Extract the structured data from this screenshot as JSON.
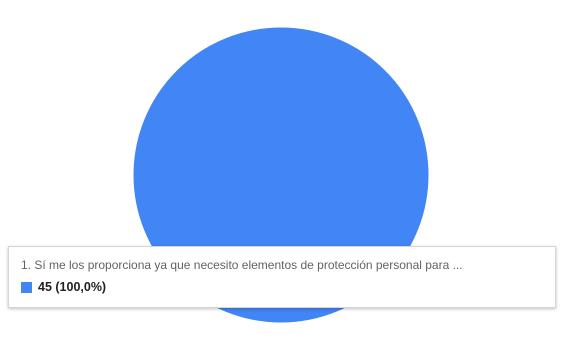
{
  "chart_data": {
    "type": "pie",
    "categories": [
      "1. Sí me los proporciona ya que necesito elementos de protección personal para ..."
    ],
    "values": [
      45
    ],
    "colors": [
      "#4285f4"
    ],
    "legend": "none"
  },
  "tooltip": {
    "label": "1. Sí me los proporciona ya que necesito elementos de protección personal para ...",
    "value": "45 (100,0%)",
    "swatch_color": "#4285f4"
  }
}
